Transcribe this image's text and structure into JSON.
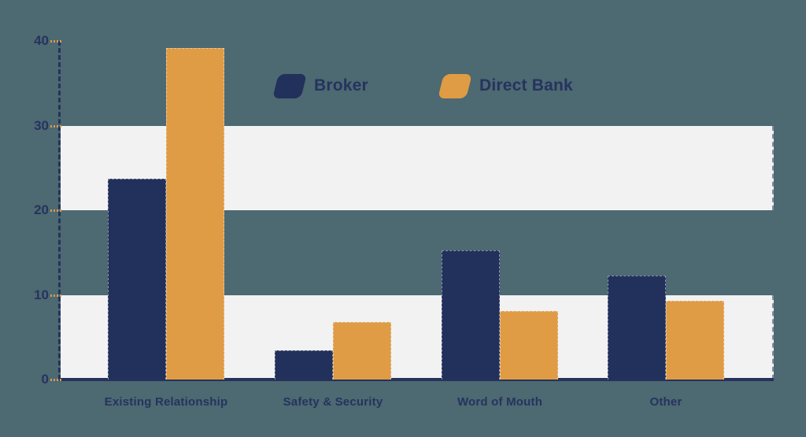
{
  "chart_data": {
    "type": "bar",
    "title": "",
    "xlabel": "",
    "ylabel": "",
    "categories": [
      "Existing Relationship",
      "Safety & Security",
      "Word of Mouth",
      "Other"
    ],
    "series": [
      {
        "name": "Broker",
        "color": "#22305c",
        "values": [
          23.7,
          3.4,
          15.3,
          12.3
        ]
      },
      {
        "name": "Direct Bank",
        "color": "#df9c45",
        "values": [
          39.2,
          6.8,
          8.1,
          9.3
        ]
      }
    ],
    "ylim": [
      0,
      40
    ],
    "y_ticks": [
      0,
      10,
      20,
      30,
      40
    ],
    "grid_bands": [
      [
        0,
        10
      ],
      [
        20,
        30
      ]
    ],
    "grid": "banded",
    "legend_position": "top"
  },
  "colors": {
    "background": "#4d6971",
    "band": "#f2f2f3",
    "axis": "#26325c",
    "tick_mark": "#d79a52",
    "text": "#26335f"
  }
}
